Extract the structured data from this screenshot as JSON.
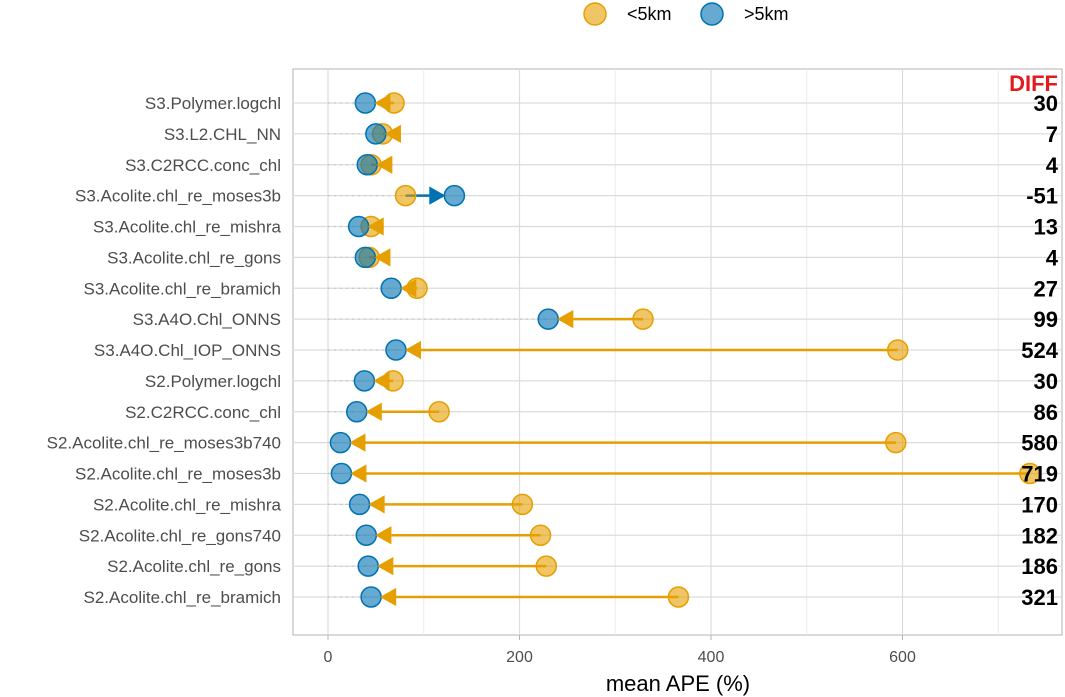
{
  "chart_data": {
    "type": "dumbbell",
    "xlabel": "mean APE (%)",
    "ylabel": "",
    "xlim": [
      -18,
      770
    ],
    "xticks": [
      0,
      200,
      400,
      600
    ],
    "xtick_labels": [
      "0",
      "200",
      "400",
      "600"
    ],
    "grid": true,
    "legend": {
      "position": "top",
      "entries": [
        {
          "name": "<5km",
          "color": "#E69F00"
        },
        {
          "name": ">5km",
          "color": "#0072B2"
        }
      ]
    },
    "diff_header": "DIFF",
    "diff_color": "#e41a1c",
    "categories": [
      "S3.Polymer.logchl",
      "S3.L2.CHL_NN",
      "S3.C2RCC.conc_chl",
      "S3.Acolite.chl_re_moses3b",
      "S3.Acolite.chl_re_mishra",
      "S3.Acolite.chl_re_gons",
      "S3.Acolite.chl_re_bramich",
      "S3.A4O.Chl_ONNS",
      "S3.A4O.Chl_IOP_ONNS",
      "S2.Polymer.logchl",
      "S2.C2RCC.conc_chl",
      "S2.Acolite.chl_re_moses3b740",
      "S2.Acolite.chl_re_moses3b",
      "S2.Acolite.chl_re_mishra",
      "S2.Acolite.chl_re_gons740",
      "S2.Acolite.chl_re_gons",
      "S2.Acolite.chl_re_bramich"
    ],
    "series": [
      {
        "name": "<5km",
        "color": "#E69F00",
        "values": [
          69,
          57,
          45,
          81,
          45,
          43,
          93,
          329,
          595,
          68,
          116,
          593,
          733,
          203,
          222,
          228,
          366
        ]
      },
      {
        "name": ">5km",
        "color": "#0072B2",
        "values": [
          39,
          50,
          41,
          132,
          32,
          39,
          66,
          230,
          71,
          38,
          30,
          13,
          14,
          33,
          40,
          42,
          45
        ]
      }
    ],
    "diff": [
      "30",
      "7",
      "4",
      "-51",
      "13",
      "4",
      "27",
      "99",
      "524",
      "30",
      "86",
      "580",
      "719",
      "170",
      "182",
      "186",
      "321"
    ]
  }
}
